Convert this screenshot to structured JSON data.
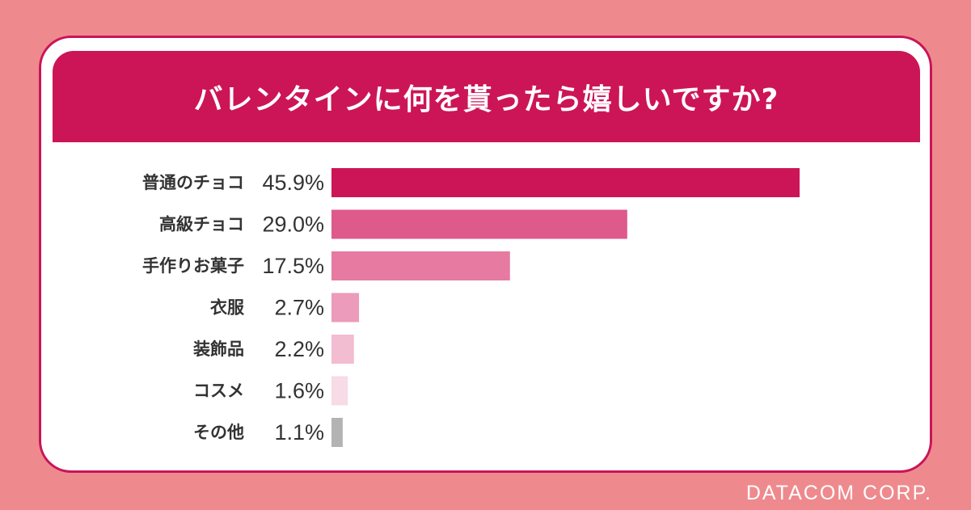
{
  "colors": {
    "background": "#ee8a8d",
    "accent": "#cc1556",
    "card": "#ffffff",
    "title_text": "#ffffff"
  },
  "footer": {
    "brand": "DATACOM CORP."
  },
  "chart_data": {
    "type": "bar",
    "orientation": "horizontal",
    "title": "バレンタインに何を貰ったら嬉しいですか?",
    "categories": [
      "普通のチョコ",
      "高級チョコ",
      "手作りお菓子",
      "衣服",
      "装飾品",
      "コスメ",
      "その他"
    ],
    "values": [
      45.9,
      29.0,
      17.5,
      2.7,
      2.2,
      1.6,
      1.1
    ],
    "value_labels": [
      "45.9%",
      "29.0%",
      "17.5%",
      "2.7%",
      "2.2%",
      "1.6%",
      "1.1%"
    ],
    "unit": "%",
    "bar_colors": [
      "#cc1556",
      "#de5a8a",
      "#e67aa0",
      "#ec9bba",
      "#f2bcd1",
      "#f7dbe6",
      "#b3b3b3"
    ],
    "xlim": [
      0,
      45.9
    ],
    "grid": false,
    "legend": "none"
  }
}
